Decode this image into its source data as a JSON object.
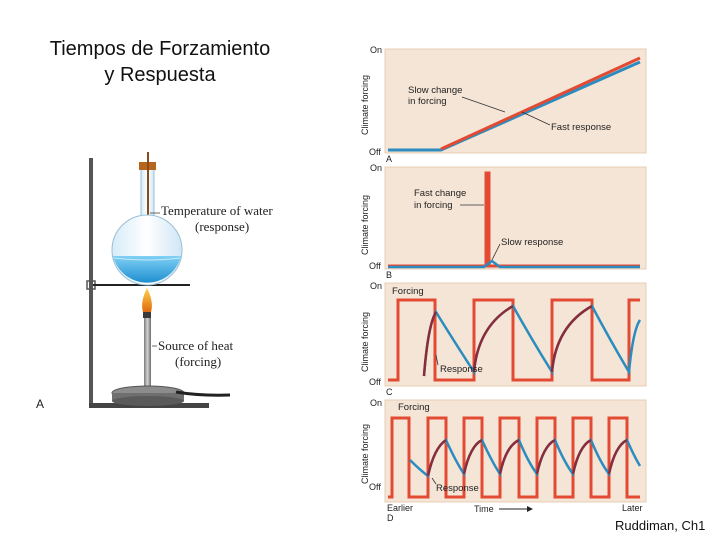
{
  "title_line1": "Tiempos de Forzamiento",
  "title_line2": "y Respuesta",
  "credit": "Ruddiman, Ch1",
  "apparatus": {
    "label_a": "A",
    "water_line1": "Temperature of water",
    "water_line2": "(response)",
    "heat_line1": "Source of heat",
    "heat_line2": "(forcing)"
  },
  "panels": {
    "ylabel": "Climate forcing",
    "on": "On",
    "off": "Off",
    "a": {
      "letter": "A",
      "ann1": "Slow change",
      "ann2": "in forcing",
      "ann3": "Fast response"
    },
    "b": {
      "letter": "B",
      "ann1": "Fast change",
      "ann2": "in forcing",
      "ann3": "Slow response"
    },
    "c": {
      "letter": "C",
      "forcing": "Forcing",
      "response": "Response"
    },
    "d": {
      "letter": "D",
      "forcing": "Forcing",
      "response": "Response",
      "earlier": "Earlier",
      "time": "Time",
      "later": "Later"
    }
  },
  "colors": {
    "panel_bg": "#f5e5d6",
    "forcing": "#e24a33",
    "response": "#2b8cbf",
    "flask_water": "#36a9e0"
  }
}
